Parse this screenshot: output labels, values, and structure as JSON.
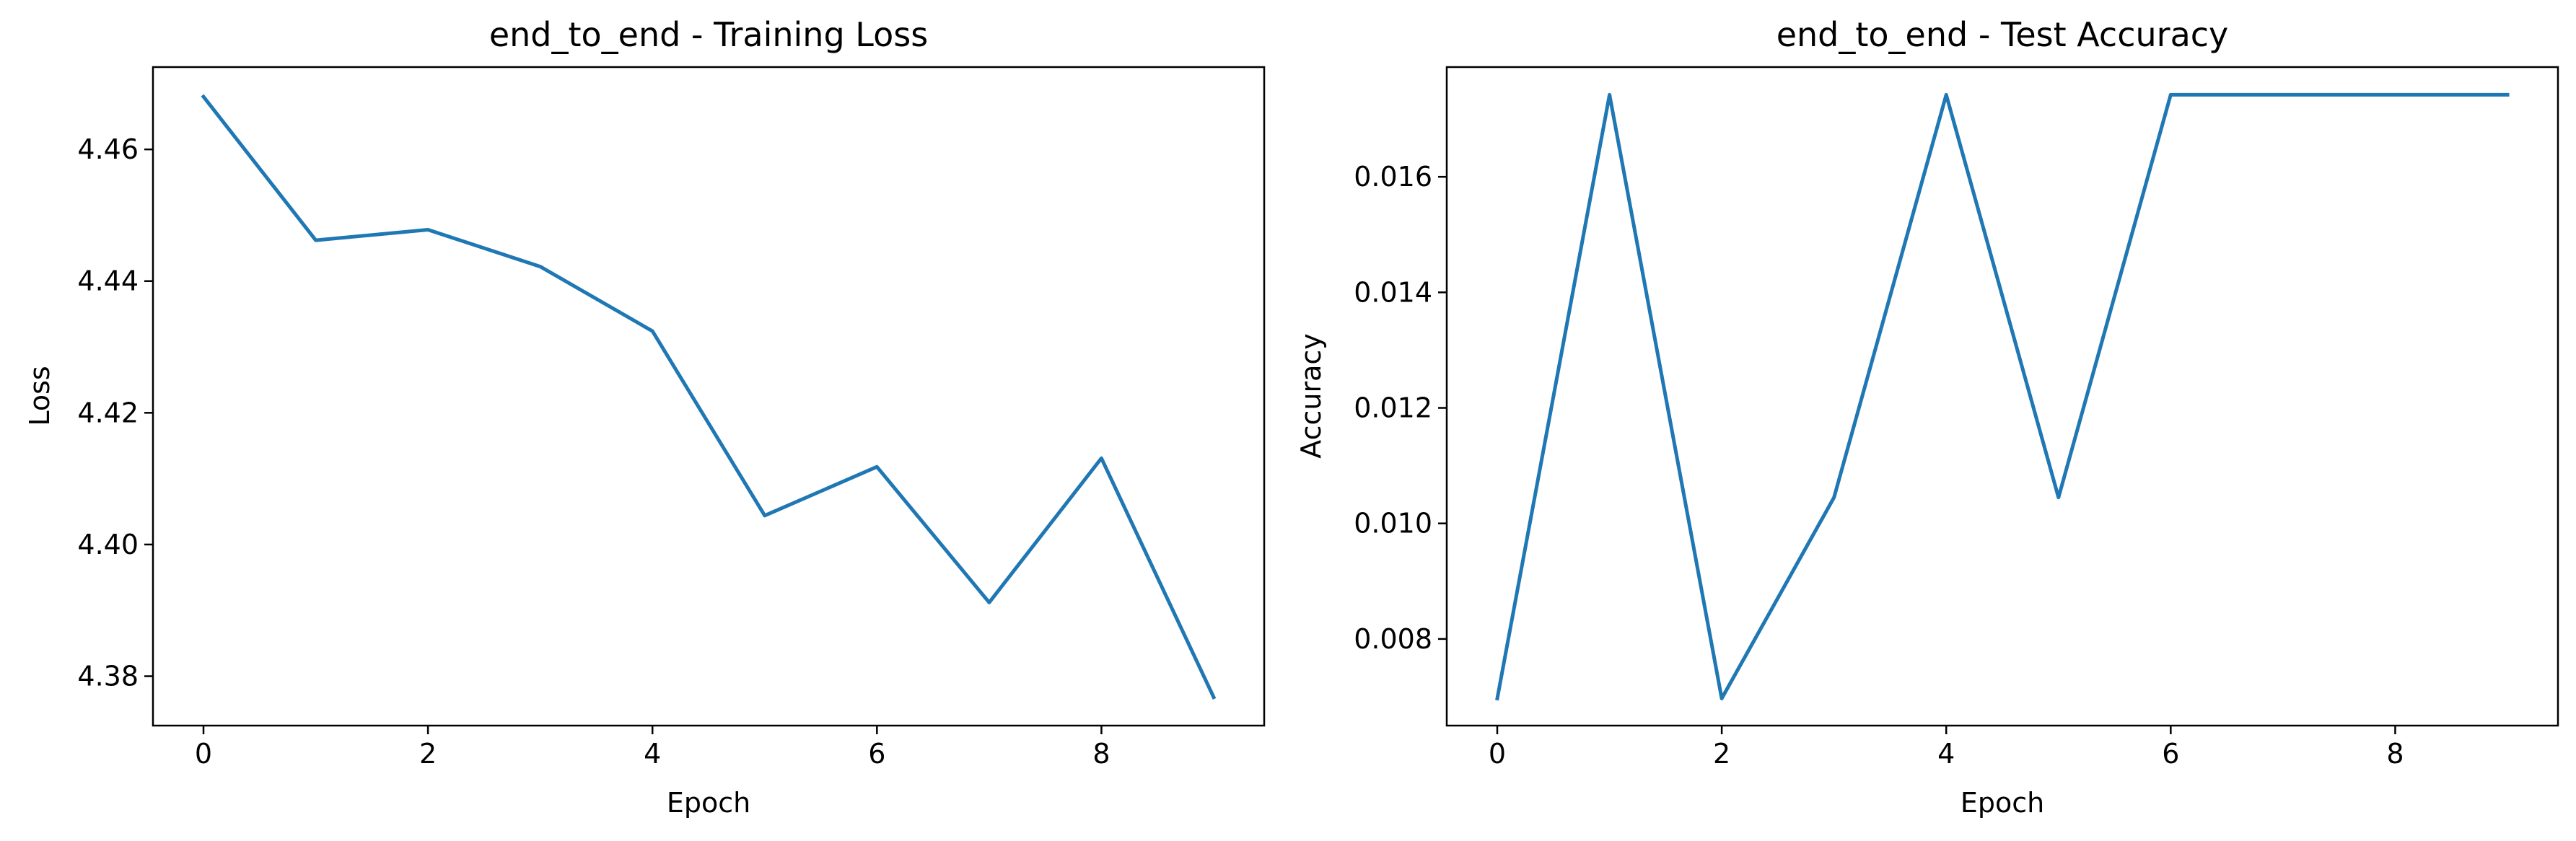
{
  "chart_data": [
    {
      "type": "line",
      "title": "end_to_end - Training Loss",
      "xlabel": "Epoch",
      "ylabel": "Loss",
      "grid": false,
      "legend": "none",
      "xlim": [
        -0.45,
        9.45
      ],
      "ylim": [
        4.3725,
        4.4725
      ],
      "xticks": [
        0,
        2,
        4,
        6,
        8
      ],
      "xtick_labels": [
        "0",
        "2",
        "4",
        "6",
        "8"
      ],
      "yticks": [
        4.38,
        4.4,
        4.42,
        4.44,
        4.46
      ],
      "ytick_labels": [
        "4.38",
        "4.40",
        "4.42",
        "4.44",
        "4.46"
      ],
      "color": "#1f77b4",
      "x": [
        0,
        1,
        2,
        3,
        4,
        5,
        6,
        7,
        8,
        9
      ],
      "y": [
        4.468,
        4.4462,
        4.4478,
        4.4422,
        4.4324,
        4.4044,
        4.4118,
        4.3912,
        4.4131,
        4.3768
      ]
    },
    {
      "type": "line",
      "title": "end_to_end - Test Accuracy",
      "xlabel": "Epoch",
      "ylabel": "Accuracy",
      "grid": false,
      "legend": "none",
      "xlim": [
        -0.45,
        9.45
      ],
      "ylim": [
        0.0065,
        0.0179
      ],
      "xticks": [
        0,
        2,
        4,
        6,
        8
      ],
      "xtick_labels": [
        "0",
        "2",
        "4",
        "6",
        "8"
      ],
      "yticks": [
        0.008,
        0.01,
        0.012,
        0.014,
        0.016
      ],
      "ytick_labels": [
        "0.008",
        "0.010",
        "0.012",
        "0.014",
        "0.016"
      ],
      "color": "#1f77b4",
      "x": [
        0,
        1,
        2,
        3,
        4,
        5,
        6,
        7,
        8,
        9
      ],
      "y": [
        0.00697,
        0.01742,
        0.00697,
        0.01045,
        0.01742,
        0.01045,
        0.01742,
        0.01742,
        0.01742,
        0.01742
      ]
    }
  ]
}
